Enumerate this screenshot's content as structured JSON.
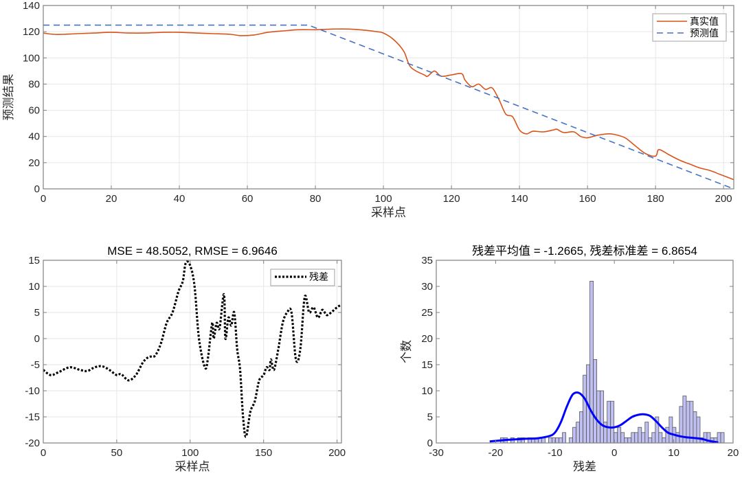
{
  "chart_data": [
    {
      "type": "line",
      "title": "",
      "xlabel": "采样点",
      "ylabel": "预测结果",
      "xlim": [
        0,
        203
      ],
      "ylim": [
        0,
        140
      ],
      "xticks": [
        0,
        20,
        40,
        60,
        80,
        100,
        120,
        140,
        160,
        180,
        200
      ],
      "yticks": [
        0,
        20,
        40,
        60,
        80,
        100,
        120,
        140
      ],
      "grid": true,
      "legend_position": "northeast",
      "series": [
        {
          "name": "真实值",
          "color": "#D95319",
          "style": "solid",
          "x": [
            0,
            3,
            6,
            10,
            15,
            20,
            25,
            30,
            35,
            40,
            45,
            50,
            55,
            58,
            62,
            66,
            70,
            75,
            80,
            85,
            90,
            95,
            98,
            100,
            103,
            106,
            108,
            112,
            113,
            115,
            117,
            120,
            123,
            124,
            126,
            128,
            130,
            132,
            134,
            136,
            138,
            140,
            142,
            144,
            147,
            150,
            151,
            153,
            156,
            158,
            160,
            163,
            166,
            168,
            171,
            174,
            177,
            180,
            181,
            184,
            187,
            190,
            193,
            196,
            199,
            203
          ],
          "values": [
            119,
            118,
            118,
            118.5,
            119,
            119.5,
            119,
            119,
            119.5,
            119.5,
            119,
            118.5,
            118,
            117,
            117.5,
            119.5,
            120.5,
            121.5,
            121.5,
            122,
            122,
            121,
            120,
            119,
            114,
            105,
            93,
            87,
            86,
            90,
            86,
            87,
            88,
            83,
            78,
            80,
            76,
            77,
            68,
            57,
            55,
            45,
            42,
            44,
            43.5,
            45,
            45.5,
            43,
            43.5,
            40,
            39,
            41,
            42,
            41.5,
            39,
            33,
            27,
            25,
            30,
            26,
            22,
            19,
            16,
            14,
            11,
            7
          ]
        },
        {
          "name": "预测值",
          "color": "#4472C4",
          "style": "dashed",
          "x": [
            0,
            78,
            203
          ],
          "values": [
            125,
            125,
            0
          ]
        }
      ]
    },
    {
      "type": "line",
      "title": "MSE = 48.5052, RMSE = 6.9646",
      "xlabel": "采样点",
      "ylabel": "",
      "xlim": [
        0,
        203
      ],
      "ylim": [
        -20,
        15
      ],
      "xticks": [
        0,
        50,
        100,
        150,
        200
      ],
      "yticks": [
        -20,
        -15,
        -10,
        -5,
        0,
        5,
        10,
        15
      ],
      "grid": true,
      "legend_position": "northeast",
      "series": [
        {
          "name": "残差",
          "color": "#000000",
          "style": "dotted",
          "x": [
            0,
            5,
            10,
            18,
            25,
            30,
            35,
            40,
            45,
            50,
            53,
            58,
            63,
            68,
            72,
            76,
            80,
            84,
            88,
            92,
            95,
            97,
            100,
            103,
            106,
            110,
            112,
            115,
            116,
            118,
            120,
            123,
            124,
            126,
            128,
            130,
            132,
            134,
            136,
            138,
            141,
            144,
            147,
            150,
            152,
            154,
            155,
            157,
            160,
            163,
            166,
            169,
            172,
            175,
            178,
            181,
            184,
            187,
            190,
            193,
            196,
            200,
            203
          ],
          "values": [
            -6,
            -7,
            -6.5,
            -5.5,
            -6,
            -6.2,
            -5.5,
            -5.3,
            -6,
            -7,
            -6.8,
            -8,
            -7,
            -4.5,
            -3.5,
            -3.3,
            -1,
            3,
            5,
            9,
            11,
            14.5,
            14,
            10,
            0,
            -5.5,
            -4,
            3,
            0,
            3,
            2,
            8.5,
            0,
            4,
            2.5,
            5,
            -2,
            -6,
            -15,
            -18.8,
            -14,
            -12,
            -8,
            -7,
            -5.5,
            -6,
            -4,
            -6,
            -2,
            3,
            5,
            5,
            -4,
            -2,
            8,
            5,
            6,
            4,
            5.5,
            4.5,
            5,
            6,
            6.5
          ]
        }
      ]
    },
    {
      "type": "histogram",
      "title": "残差平均值 = -1.2665, 残差标准差 = 6.8654",
      "xlabel": "残差",
      "ylabel": "个数",
      "xlim": [
        -30,
        20
      ],
      "ylim": [
        0,
        35
      ],
      "xticks": [
        -30,
        -20,
        -10,
        0,
        10,
        20
      ],
      "yticks": [
        0,
        5,
        10,
        15,
        20,
        25,
        30,
        35
      ],
      "grid": false,
      "bar_color": "#BFBFF2",
      "bin_width": 0.58,
      "bins_start": -19.2,
      "counts": [
        1,
        1,
        0,
        1,
        0,
        1,
        1,
        0,
        1,
        1,
        1,
        1,
        1,
        0,
        1,
        1,
        1,
        1,
        2,
        0,
        1,
        3,
        4,
        6,
        13,
        15,
        31,
        16,
        10,
        10,
        4,
        8,
        8,
        2,
        3,
        2,
        1,
        1,
        2,
        2,
        3,
        2,
        4,
        1,
        2,
        5,
        2,
        1,
        3,
        5,
        3,
        2,
        7,
        9,
        8,
        8,
        6,
        5,
        1,
        2,
        2,
        1,
        1,
        2,
        2,
        0,
        0,
        0,
        0,
        1,
        1,
        1,
        1,
        2,
        3,
        3
      ],
      "fit_curve": {
        "color": "#0000FF",
        "description": "kernel density fit",
        "x": [
          -21,
          -18,
          -15,
          -13,
          -11,
          -10,
          -9,
          -8,
          -7,
          -6,
          -5,
          -4,
          -3,
          -2,
          -1,
          0,
          1,
          2,
          3,
          4,
          5,
          6,
          7,
          8,
          9,
          10,
          11,
          12,
          13,
          14,
          15,
          16,
          17.5
        ],
        "values": [
          0.3,
          0.6,
          0.8,
          0.9,
          1.3,
          2,
          4,
          7,
          9.3,
          9.6,
          8.5,
          6.3,
          4.5,
          3.4,
          3,
          3,
          3.4,
          4.2,
          5,
          5.4,
          5.5,
          5.2,
          4.2,
          3,
          2,
          1.6,
          1.3,
          1.1,
          1,
          0.9,
          0.7,
          0.4,
          0.1
        ]
      }
    }
  ],
  "legend": {
    "top": [
      "真实值",
      "预测值"
    ],
    "bottom_left": [
      "残差"
    ]
  }
}
